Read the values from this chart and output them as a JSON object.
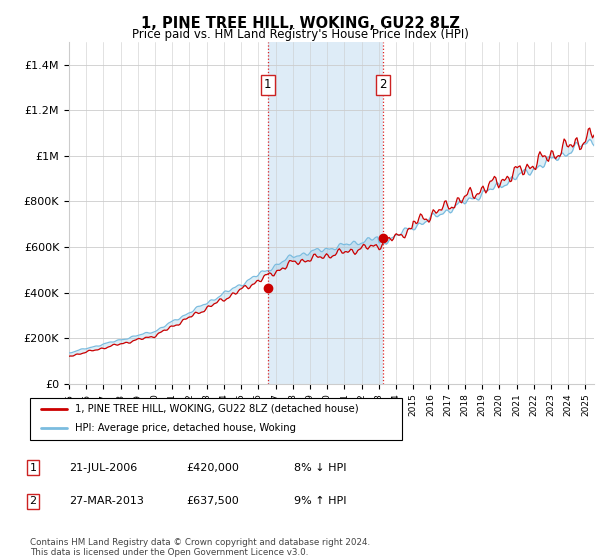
{
  "title": "1, PINE TREE HILL, WOKING, GU22 8LZ",
  "subtitle": "Price paid vs. HM Land Registry's House Price Index (HPI)",
  "hpi_color": "#7bbcdf",
  "price_color": "#cc0000",
  "marker_color": "#cc0000",
  "bg_color": "#d6e8f5",
  "ylim": [
    0,
    1500000
  ],
  "yticks": [
    0,
    200000,
    400000,
    600000,
    800000,
    1000000,
    1200000,
    1400000
  ],
  "ytick_labels": [
    "£0",
    "£200K",
    "£400K",
    "£600K",
    "£800K",
    "£1M",
    "£1.2M",
    "£1.4M"
  ],
  "sale1_date": 2006.54,
  "sale1_price": 420000,
  "sale2_date": 2013.23,
  "sale2_price": 637500,
  "legend_line1": "1, PINE TREE HILL, WOKING, GU22 8LZ (detached house)",
  "legend_line2": "HPI: Average price, detached house, Woking",
  "table_entries": [
    {
      "num": "1",
      "date": "21-JUL-2006",
      "price": "£420,000",
      "pct": "8% ↓ HPI"
    },
    {
      "num": "2",
      "date": "27-MAR-2013",
      "price": "£637,500",
      "pct": "9% ↑ HPI"
    }
  ],
  "footnote": "Contains HM Land Registry data © Crown copyright and database right 2024.\nThis data is licensed under the Open Government Licence v3.0.",
  "xstart": 1995.0,
  "xend": 2025.5
}
